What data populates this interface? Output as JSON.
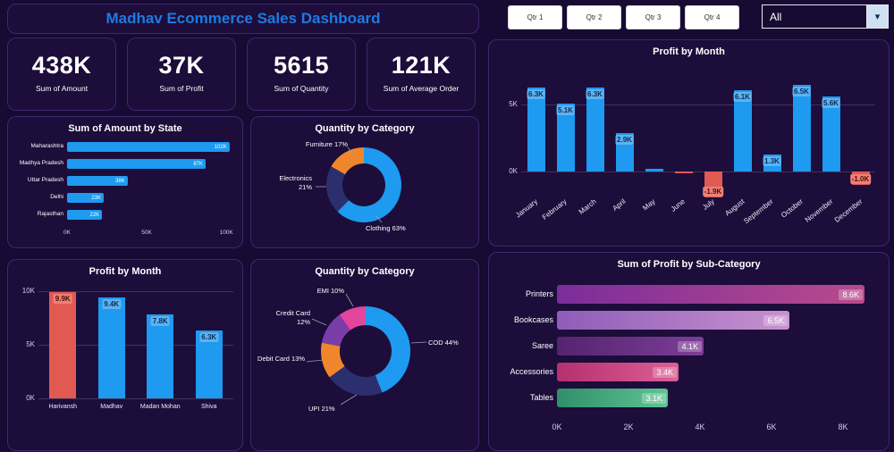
{
  "header": {
    "title": "Madhav Ecommerce Sales Dashboard"
  },
  "slicers": {
    "quarters": [
      "Qtr 1",
      "Qtr 2",
      "Qtr 3",
      "Qtr 4"
    ],
    "dropdown_value": "All"
  },
  "kpis": [
    {
      "value": "438K",
      "label": "Sum of Amount"
    },
    {
      "value": "37K",
      "label": "Sum of Profit"
    },
    {
      "value": "5615",
      "label": "Sum of Quantity"
    },
    {
      "value": "121K",
      "label": "Sum of Average Order"
    }
  ],
  "colors": {
    "accent_blue": "#1e9af0",
    "negative_red": "#e05a52",
    "title_blue": "#1e7ae0",
    "background": "#170a33"
  },
  "chart_data": [
    {
      "id": "amount_by_state",
      "type": "bar",
      "orientation": "horizontal",
      "title": "Sum of Amount by State",
      "categories": [
        "Maharashtra",
        "Madhya Pradesh",
        "Uttar Pradesh",
        "Delhi",
        "Rajasthan"
      ],
      "values": [
        102,
        87,
        38,
        23,
        22
      ],
      "labels": [
        "102K",
        "87K",
        "38K",
        "23K",
        "22K"
      ],
      "xticks": [
        "0K",
        "50K",
        "100K"
      ],
      "xmax": 110,
      "bar_color": "#1e9af0"
    },
    {
      "id": "quantity_by_category",
      "type": "pie",
      "title": "Quantity by Category",
      "segments": [
        {
          "label": "Clothing 63%",
          "value": 63,
          "color": "#1e9af0"
        },
        {
          "label": "Electronics 21%",
          "value": 21,
          "color": "#2b2f6e"
        },
        {
          "label": "Furniture 17%",
          "value": 17,
          "color": "#f0862b"
        }
      ]
    },
    {
      "id": "profit_by_month",
      "type": "bar",
      "orientation": "vertical",
      "title": "Profit by Month",
      "categories": [
        "January",
        "February",
        "March",
        "April",
        "May",
        "June",
        "July",
        "August",
        "September",
        "October",
        "November",
        "December"
      ],
      "values": [
        6.3,
        5.1,
        6.3,
        2.9,
        0.2,
        -0.1,
        -1.9,
        6.1,
        1.3,
        6.5,
        5.6,
        -1.0
      ],
      "labels": [
        "6.3K",
        "5.1K",
        "6.3K",
        "2.9K",
        "",
        "",
        "-1.9K",
        "6.1K",
        "1.3K",
        "6.5K",
        "5.6K",
        "-1.0K"
      ],
      "yticks": [
        "5K",
        "0K"
      ],
      "ylim": [
        -2,
        7
      ],
      "positive_color": "#1e9af0",
      "negative_color": "#e05a52"
    },
    {
      "id": "profit_by_person",
      "type": "bar",
      "orientation": "vertical",
      "title": "Profit by Month",
      "categories": [
        "Harivansh",
        "Madhav",
        "Madan Mohan",
        "Shiva"
      ],
      "values": [
        9.9,
        9.4,
        7.8,
        6.3
      ],
      "labels": [
        "9.9K",
        "9.4K",
        "7.8K",
        "6.3K"
      ],
      "colors": [
        "#e05a52",
        "#1e9af0",
        "#1e9af0",
        "#1e9af0"
      ],
      "yticks": [
        "10K",
        "5K",
        "0K"
      ],
      "ylim": [
        0,
        10
      ]
    },
    {
      "id": "quantity_by_payment",
      "type": "pie",
      "title": "Quantity by Category",
      "segments": [
        {
          "label": "COD 44%",
          "value": 44,
          "color": "#1e9af0"
        },
        {
          "label": "UPI 21%",
          "value": 21,
          "color": "#2b2f6e"
        },
        {
          "label": "Debit Card 13%",
          "value": 13,
          "color": "#f0862b"
        },
        {
          "label": "Credit Card 12%",
          "value": 12,
          "color": "#7a3da8"
        },
        {
          "label": "EMI 10%",
          "value": 10,
          "color": "#e2459b"
        }
      ]
    },
    {
      "id": "profit_by_subcategory",
      "type": "bar",
      "orientation": "horizontal",
      "title": "Sum of Profit by Sub-Category",
      "categories": [
        "Printers",
        "Bookcases",
        "Saree",
        "Accessories",
        "Tables"
      ],
      "values": [
        8.6,
        6.5,
        4.1,
        3.4,
        3.1
      ],
      "labels": [
        "8.6K",
        "6.5K",
        "4.1K",
        "3.4K",
        "3.1K"
      ],
      "xticks": [
        "0K",
        "2K",
        "4K",
        "6K",
        "8K"
      ],
      "xmax": 9.2,
      "colors": [
        [
          "#7b2d9b",
          "#b94a8c"
        ],
        [
          "#8f5cb8",
          "#c792cf"
        ],
        [
          "#55246f",
          "#7c3d96"
        ],
        [
          "#b5306e",
          "#dd5f95"
        ],
        [
          "#2f8f6a",
          "#5fc493"
        ]
      ]
    }
  ]
}
